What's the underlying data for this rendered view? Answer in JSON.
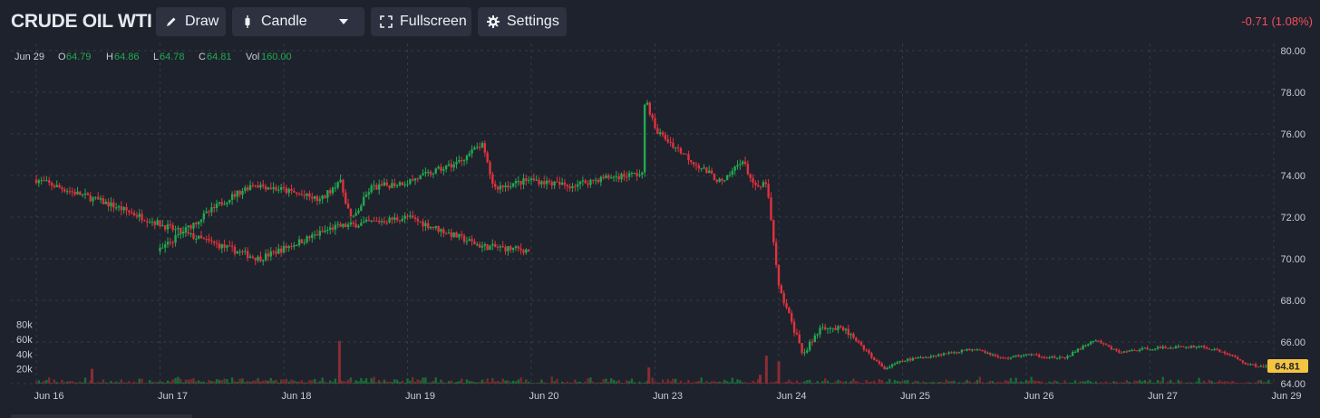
{
  "header": {
    "title": "CRUDE OIL WTI",
    "draw_label": "Draw",
    "chart_type_label": "Candle",
    "fullscreen_label": "Fullscreen",
    "settings_label": "Settings",
    "change_text": "-0.71 (1.08%)"
  },
  "colors": {
    "background": "#1e222d",
    "up": "#22a94e",
    "down": "#e0323c",
    "grid": "#363a45",
    "last_price_bg": "#f5c542"
  },
  "ohlc_legend": {
    "date": "Jun 29",
    "o_label": "O",
    "o_value": "64.79",
    "h_label": "H",
    "h_value": "64.86",
    "l_label": "L",
    "l_value": "64.78",
    "c_label": "C",
    "c_value": "64.81",
    "vol_label": "Vol",
    "vol_value": "160.00"
  },
  "last_price_label": "64.81",
  "chart_data": {
    "type": "candlestick",
    "price_axis": {
      "min": 64,
      "max": 80,
      "ticks": [
        "80.00",
        "78.00",
        "76.00",
        "74.00",
        "72.00",
        "70.00",
        "68.00",
        "66.00",
        "64.00"
      ]
    },
    "volume_axis": {
      "ticks": [
        "80k",
        "60k",
        "40k",
        "20k"
      ],
      "max": 80000
    },
    "x_ticks": [
      "Jun 16",
      "Jun 17",
      "Jun 18",
      "Jun 19",
      "Jun 20",
      "Jun 23",
      "Jun 24",
      "Jun 25",
      "Jun 26",
      "Jun 27",
      "Jun 29"
    ],
    "grid": true,
    "segments": [
      {
        "from": 0,
        "to": 4,
        "points": [
          [
            0.0,
            73.8
          ],
          [
            0.15,
            72.6
          ],
          [
            0.3,
            71.2
          ],
          [
            0.45,
            70.0
          ],
          [
            0.6,
            71.5
          ],
          [
            0.75,
            72.0
          ],
          [
            0.9,
            70.6
          ],
          [
            1.0,
            70.4
          ]
        ]
      },
      {
        "from": 1,
        "to": 2,
        "points": [
          [
            0.0,
            70.4
          ],
          [
            0.25,
            71.6
          ],
          [
            0.5,
            72.7
          ],
          [
            0.75,
            73.6
          ],
          [
            1.0,
            73.3
          ]
        ]
      },
      {
        "from": 2,
        "to": 3,
        "points": [
          [
            0.0,
            73.3
          ],
          [
            0.3,
            72.8
          ],
          [
            0.45,
            73.8
          ],
          [
            0.55,
            71.8
          ],
          [
            0.7,
            73.4
          ],
          [
            1.0,
            73.7
          ]
        ]
      },
      {
        "from": 3,
        "to": 4,
        "points": [
          [
            0.0,
            73.7
          ],
          [
            0.4,
            74.6
          ],
          [
            0.6,
            75.5
          ],
          [
            0.7,
            73.4
          ],
          [
            1.0,
            73.8
          ]
        ]
      },
      {
        "from": 4,
        "to": 5,
        "points": [
          [
            0.0,
            73.8
          ],
          [
            0.3,
            73.5
          ],
          [
            0.6,
            73.9
          ],
          [
            0.9,
            74.1
          ],
          [
            0.92,
            77.9
          ],
          [
            1.0,
            76.2
          ]
        ]
      },
      {
        "from": 5,
        "to": 6,
        "points": [
          [
            0.0,
            76.2
          ],
          [
            0.3,
            74.7
          ],
          [
            0.55,
            73.6
          ],
          [
            0.7,
            74.8
          ],
          [
            0.82,
            73.3
          ],
          [
            0.9,
            73.7
          ],
          [
            1.0,
            68.6
          ]
        ]
      },
      {
        "from": 6,
        "to": 7,
        "points": [
          [
            0.0,
            68.6
          ],
          [
            0.2,
            65.4
          ],
          [
            0.35,
            66.8
          ],
          [
            0.55,
            66.5
          ],
          [
            0.7,
            65.6
          ],
          [
            0.85,
            64.7
          ],
          [
            1.0,
            65.1
          ]
        ]
      },
      {
        "from": 7,
        "to": 8,
        "points": [
          [
            0.0,
            65.1
          ],
          [
            0.3,
            65.4
          ],
          [
            0.6,
            65.7
          ],
          [
            0.8,
            65.2
          ],
          [
            1.0,
            65.4
          ]
        ]
      },
      {
        "from": 8,
        "to": 9,
        "points": [
          [
            0.0,
            65.4
          ],
          [
            0.3,
            65.2
          ],
          [
            0.55,
            66.1
          ],
          [
            0.75,
            65.5
          ],
          [
            1.0,
            65.7
          ]
        ]
      },
      {
        "from": 9,
        "to": 10,
        "points": [
          [
            0.0,
            65.7
          ],
          [
            0.4,
            65.8
          ],
          [
            0.6,
            65.5
          ],
          [
            0.8,
            64.9
          ],
          [
            1.0,
            64.81
          ]
        ]
      }
    ],
    "volume_spikes": [
      {
        "day": 2.45,
        "value": 58000
      },
      {
        "day": 4.95,
        "value": 22000
      },
      {
        "day": 5.9,
        "value": 38000
      },
      {
        "day": 6.0,
        "value": 30000
      },
      {
        "day": 0.45,
        "value": 20000
      },
      {
        "day": 5.85,
        "value": 12000
      }
    ]
  }
}
